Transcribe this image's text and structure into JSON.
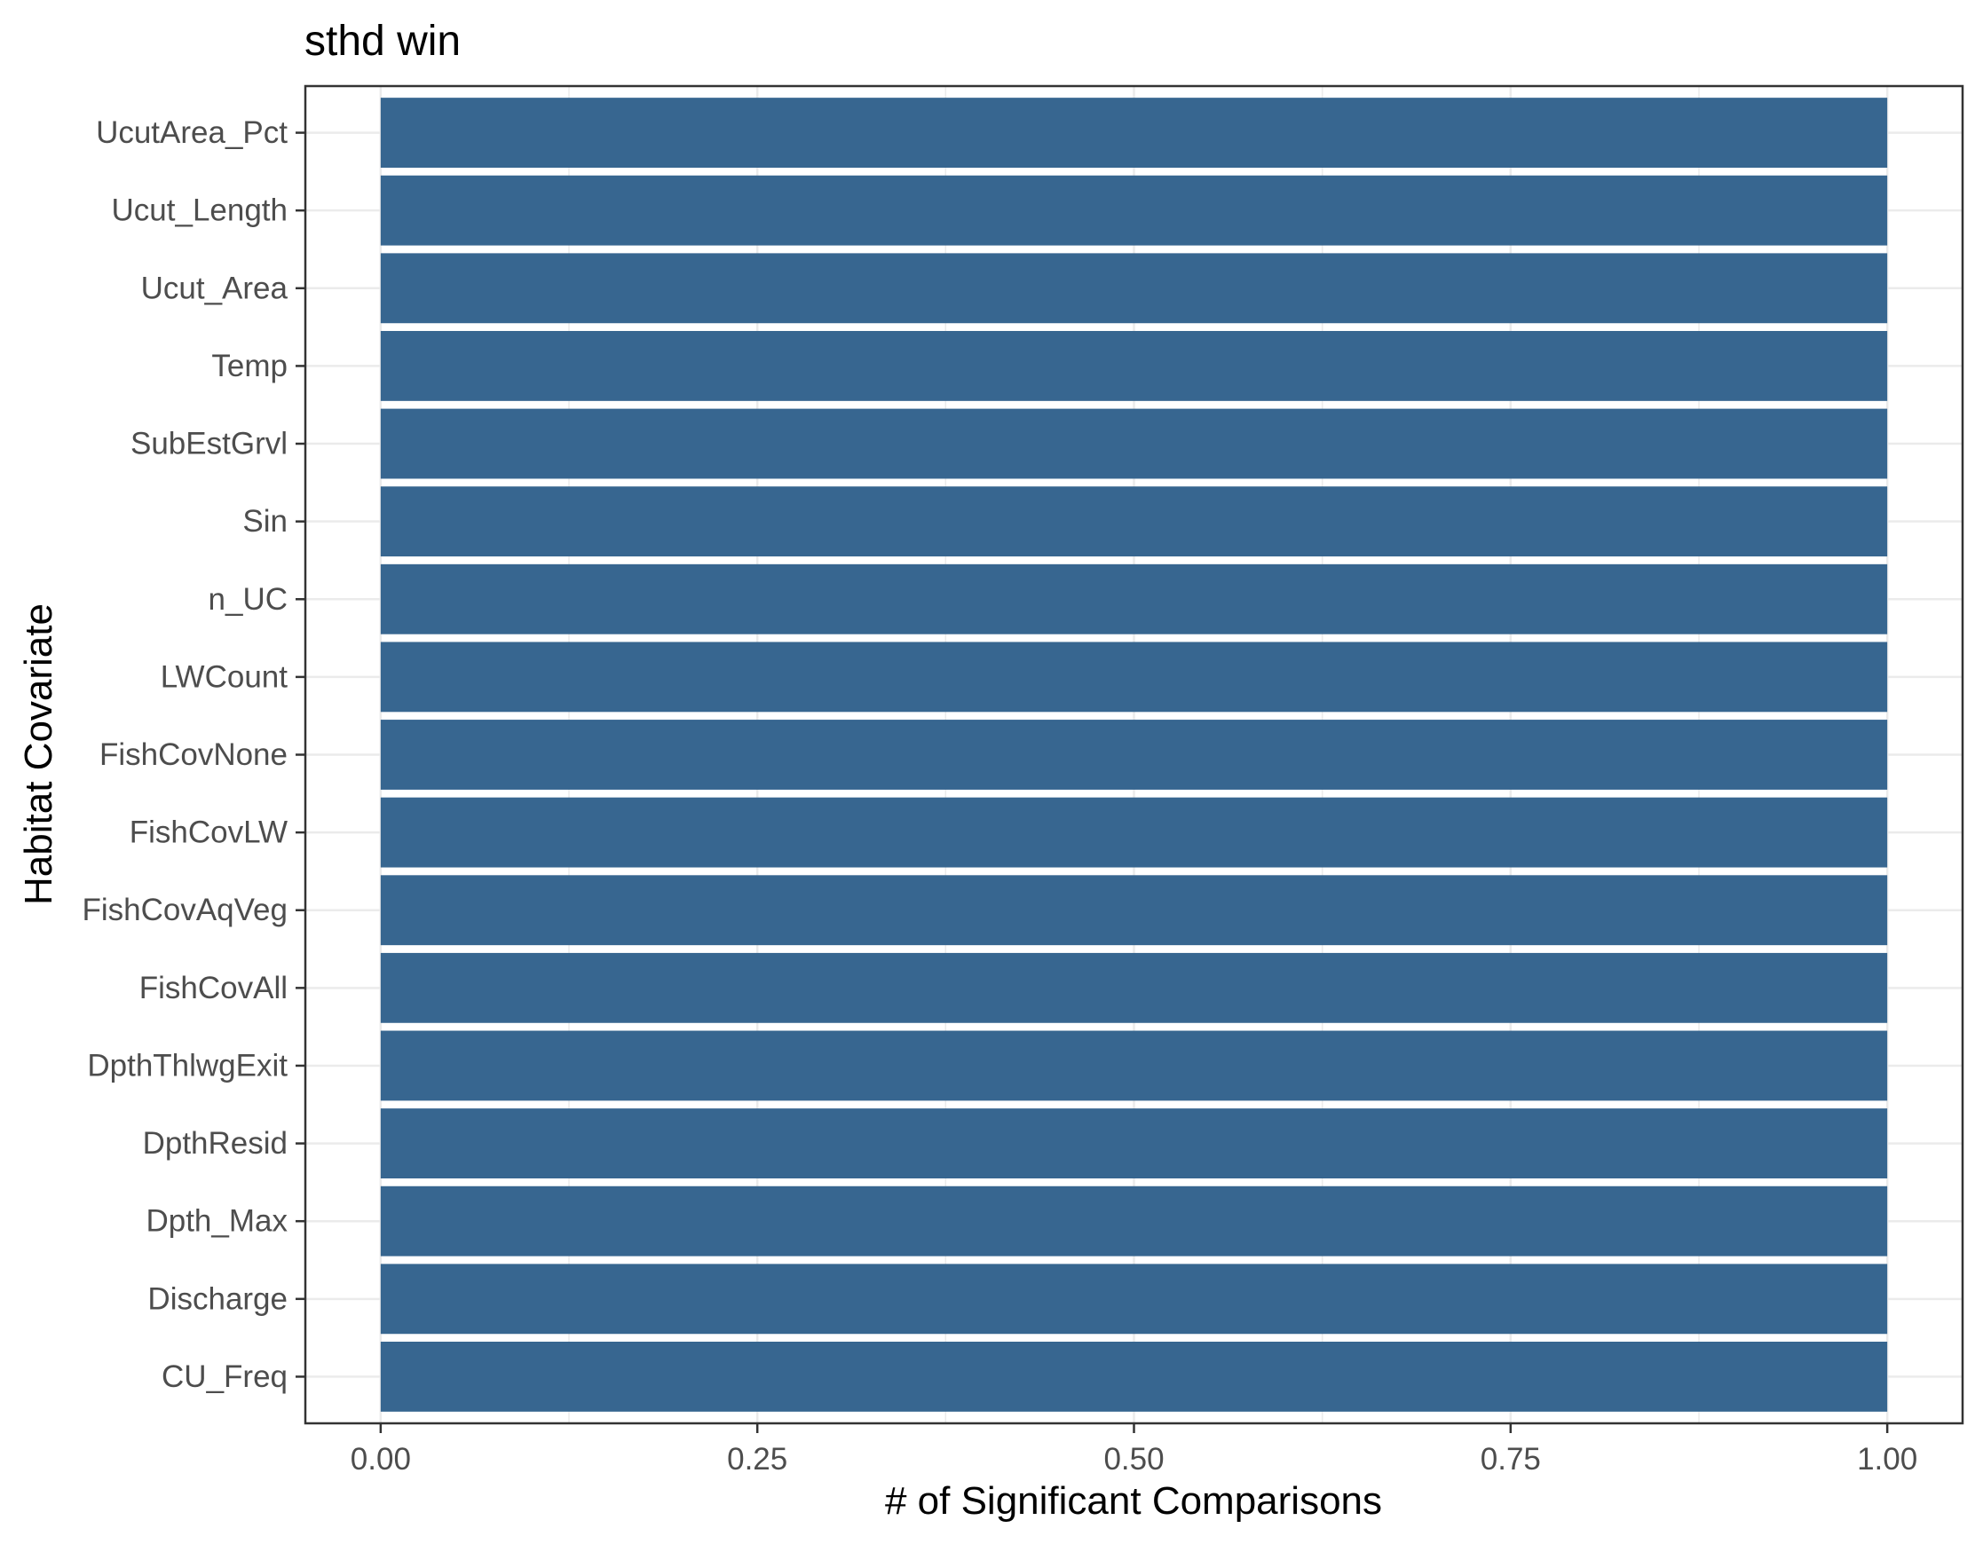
{
  "chart_data": {
    "type": "bar",
    "orientation": "horizontal",
    "title": "sthd win",
    "xlabel": "# of Significant Comparisons",
    "ylabel": "Habitat Covariate",
    "categories": [
      "UcutArea_Pct",
      "Ucut_Length",
      "Ucut_Area",
      "Temp",
      "SubEstGrvl",
      "Sin",
      "n_UC",
      "LWCount",
      "FishCovNone",
      "FishCovLW",
      "FishCovAqVeg",
      "FishCovAll",
      "DpthThlwgExit",
      "DpthResid",
      "Dpth_Max",
      "Discharge",
      "CU_Freq"
    ],
    "values": [
      1,
      1,
      1,
      1,
      1,
      1,
      1,
      1,
      1,
      1,
      1,
      1,
      1,
      1,
      1,
      1,
      1
    ],
    "xlim": [
      -0.05,
      1.05
    ],
    "xticks": [
      0,
      0.25,
      0.5,
      0.75,
      1
    ],
    "xtick_labels": [
      "0.00",
      "0.25",
      "0.50",
      "0.75",
      "1.00"
    ],
    "grid": true,
    "legend": "none",
    "bar_color": "#376690",
    "grid_color": "#ebebeb",
    "panel_border_color": "#333333"
  }
}
